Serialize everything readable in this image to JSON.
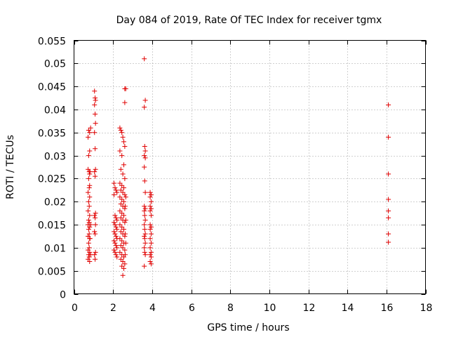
{
  "chart_data": {
    "type": "scatter",
    "title": "Day 084 of 2019, Rate Of TEC Index for receiver tgmx",
    "xlabel": "GPS time / hours",
    "ylabel": "ROTI / TECUs",
    "xlim": [
      0,
      18
    ],
    "ylim": [
      0,
      0.055
    ],
    "xticks": [
      0,
      2,
      4,
      6,
      8,
      10,
      12,
      14,
      16,
      18
    ],
    "xtick_labels": [
      "0",
      "2",
      "4",
      "6",
      "8",
      "10",
      "12",
      "14",
      "16",
      "18"
    ],
    "yticks": [
      0,
      0.005,
      0.01,
      0.015,
      0.02,
      0.025,
      0.03,
      0.035,
      0.04,
      0.045,
      0.05,
      0.055
    ],
    "ytick_labels": [
      "0",
      "0.005",
      "0.01",
      "0.015",
      "0.02",
      "0.025",
      "0.03",
      "0.035",
      "0.04",
      "0.045",
      "0.05",
      "0.055"
    ],
    "grid": true,
    "marker": "plus",
    "color": "#e00000",
    "series": [
      {
        "name": "ROTI",
        "points": [
          [
            0.75,
            0.0355
          ],
          [
            0.8,
            0.035
          ],
          [
            0.72,
            0.034
          ],
          [
            0.8,
            0.031
          ],
          [
            0.75,
            0.03
          ],
          [
            0.72,
            0.027
          ],
          [
            0.78,
            0.0265
          ],
          [
            0.8,
            0.026
          ],
          [
            0.75,
            0.025
          ],
          [
            0.8,
            0.0235
          ],
          [
            0.78,
            0.023
          ],
          [
            0.72,
            0.022
          ],
          [
            0.8,
            0.021
          ],
          [
            0.75,
            0.02
          ],
          [
            0.78,
            0.019
          ],
          [
            0.72,
            0.018
          ],
          [
            0.8,
            0.017
          ],
          [
            0.75,
            0.016
          ],
          [
            0.78,
            0.0155
          ],
          [
            0.72,
            0.015
          ],
          [
            0.8,
            0.0145
          ],
          [
            0.75,
            0.014
          ],
          [
            0.78,
            0.013
          ],
          [
            0.72,
            0.0125
          ],
          [
            0.8,
            0.012
          ],
          [
            0.75,
            0.011
          ],
          [
            0.78,
            0.01
          ],
          [
            0.72,
            0.0095
          ],
          [
            0.8,
            0.009
          ],
          [
            0.75,
            0.0085
          ],
          [
            0.78,
            0.008
          ],
          [
            0.72,
            0.0075
          ],
          [
            0.8,
            0.007
          ],
          [
            0.85,
            0.036
          ],
          [
            0.82,
            0.0265
          ],
          [
            0.85,
            0.015
          ],
          [
            0.82,
            0.012
          ],
          [
            0.85,
            0.0085
          ],
          [
            1.05,
            0.044
          ],
          [
            1.08,
            0.0425
          ],
          [
            1.1,
            0.042
          ],
          [
            1.05,
            0.041
          ],
          [
            1.08,
            0.039
          ],
          [
            1.1,
            0.037
          ],
          [
            1.05,
            0.035
          ],
          [
            1.08,
            0.0315
          ],
          [
            1.1,
            0.027
          ],
          [
            1.05,
            0.0265
          ],
          [
            1.08,
            0.0255
          ],
          [
            1.1,
            0.0175
          ],
          [
            1.05,
            0.017
          ],
          [
            1.08,
            0.0165
          ],
          [
            1.1,
            0.015
          ],
          [
            1.05,
            0.0135
          ],
          [
            1.08,
            0.013
          ],
          [
            1.1,
            0.009
          ],
          [
            1.05,
            0.0085
          ],
          [
            1.08,
            0.0075
          ],
          [
            2.05,
            0.024
          ],
          [
            2.1,
            0.023
          ],
          [
            2.15,
            0.0225
          ],
          [
            2.2,
            0.022
          ],
          [
            2.05,
            0.0215
          ],
          [
            2.1,
            0.017
          ],
          [
            2.15,
            0.0165
          ],
          [
            2.2,
            0.016
          ],
          [
            2.05,
            0.0155
          ],
          [
            2.1,
            0.015
          ],
          [
            2.15,
            0.0145
          ],
          [
            2.2,
            0.014
          ],
          [
            2.05,
            0.0135
          ],
          [
            2.1,
            0.013
          ],
          [
            2.15,
            0.0125
          ],
          [
            2.2,
            0.012
          ],
          [
            2.05,
            0.0115
          ],
          [
            2.1,
            0.011
          ],
          [
            2.15,
            0.0105
          ],
          [
            2.2,
            0.01
          ],
          [
            2.05,
            0.0095
          ],
          [
            2.1,
            0.009
          ],
          [
            2.15,
            0.0085
          ],
          [
            2.2,
            0.008
          ],
          [
            2.35,
            0.036
          ],
          [
            2.4,
            0.0355
          ],
          [
            2.45,
            0.035
          ],
          [
            2.5,
            0.034
          ],
          [
            2.55,
            0.033
          ],
          [
            2.6,
            0.032
          ],
          [
            2.35,
            0.031
          ],
          [
            2.45,
            0.03
          ],
          [
            2.55,
            0.028
          ],
          [
            2.4,
            0.027
          ],
          [
            2.5,
            0.026
          ],
          [
            2.6,
            0.025
          ],
          [
            2.35,
            0.024
          ],
          [
            2.45,
            0.0235
          ],
          [
            2.55,
            0.023
          ],
          [
            2.4,
            0.0225
          ],
          [
            2.5,
            0.022
          ],
          [
            2.6,
            0.0215
          ],
          [
            2.35,
            0.021
          ],
          [
            2.45,
            0.0205
          ],
          [
            2.55,
            0.02
          ],
          [
            2.4,
            0.0195
          ],
          [
            2.5,
            0.019
          ],
          [
            2.6,
            0.0185
          ],
          [
            2.35,
            0.018
          ],
          [
            2.45,
            0.0175
          ],
          [
            2.55,
            0.017
          ],
          [
            2.4,
            0.0165
          ],
          [
            2.5,
            0.016
          ],
          [
            2.6,
            0.0155
          ],
          [
            2.35,
            0.015
          ],
          [
            2.45,
            0.0145
          ],
          [
            2.55,
            0.014
          ],
          [
            2.4,
            0.0135
          ],
          [
            2.5,
            0.013
          ],
          [
            2.6,
            0.0125
          ],
          [
            2.35,
            0.012
          ],
          [
            2.45,
            0.0115
          ],
          [
            2.55,
            0.011
          ],
          [
            2.4,
            0.0105
          ],
          [
            2.5,
            0.01
          ],
          [
            2.6,
            0.0095
          ],
          [
            2.35,
            0.009
          ],
          [
            2.45,
            0.0085
          ],
          [
            2.55,
            0.008
          ],
          [
            2.4,
            0.0075
          ],
          [
            2.5,
            0.007
          ],
          [
            2.6,
            0.0065
          ],
          [
            2.45,
            0.006
          ],
          [
            2.55,
            0.0055
          ],
          [
            2.5,
            0.004
          ],
          [
            2.6,
            0.0445
          ],
          [
            2.65,
            0.0445
          ],
          [
            2.6,
            0.0415
          ],
          [
            2.65,
            0.021
          ],
          [
            2.62,
            0.019
          ],
          [
            2.65,
            0.016
          ],
          [
            2.62,
            0.013
          ],
          [
            2.65,
            0.011
          ],
          [
            2.62,
            0.0085
          ],
          [
            3.6,
            0.051
          ],
          [
            3.65,
            0.042
          ],
          [
            3.6,
            0.0405
          ],
          [
            3.62,
            0.032
          ],
          [
            3.65,
            0.031
          ],
          [
            3.6,
            0.03
          ],
          [
            3.65,
            0.0295
          ],
          [
            3.6,
            0.0275
          ],
          [
            3.62,
            0.0245
          ],
          [
            3.65,
            0.022
          ],
          [
            3.6,
            0.019
          ],
          [
            3.65,
            0.0185
          ],
          [
            3.6,
            0.018
          ],
          [
            3.62,
            0.017
          ],
          [
            3.65,
            0.016
          ],
          [
            3.6,
            0.015
          ],
          [
            3.62,
            0.014
          ],
          [
            3.65,
            0.013
          ],
          [
            3.6,
            0.0125
          ],
          [
            3.62,
            0.012
          ],
          [
            3.65,
            0.011
          ],
          [
            3.6,
            0.01
          ],
          [
            3.62,
            0.009
          ],
          [
            3.65,
            0.0085
          ],
          [
            3.6,
            0.006
          ],
          [
            3.9,
            0.022
          ],
          [
            3.95,
            0.0215
          ],
          [
            3.9,
            0.021
          ],
          [
            3.95,
            0.02
          ],
          [
            3.9,
            0.019
          ],
          [
            3.95,
            0.0185
          ],
          [
            3.9,
            0.018
          ],
          [
            3.95,
            0.017
          ],
          [
            3.9,
            0.015
          ],
          [
            3.95,
            0.0145
          ],
          [
            3.9,
            0.014
          ],
          [
            3.95,
            0.013
          ],
          [
            3.9,
            0.012
          ],
          [
            3.95,
            0.011
          ],
          [
            3.9,
            0.01
          ],
          [
            3.95,
            0.009
          ],
          [
            3.9,
            0.0085
          ],
          [
            3.95,
            0.008
          ],
          [
            3.9,
            0.007
          ],
          [
            3.95,
            0.0065
          ],
          [
            16.1,
            0.041
          ],
          [
            16.1,
            0.034
          ],
          [
            16.1,
            0.026
          ],
          [
            16.1,
            0.0205
          ],
          [
            16.1,
            0.018
          ],
          [
            16.1,
            0.0165
          ],
          [
            16.1,
            0.013
          ],
          [
            16.1,
            0.0112
          ]
        ]
      }
    ]
  }
}
